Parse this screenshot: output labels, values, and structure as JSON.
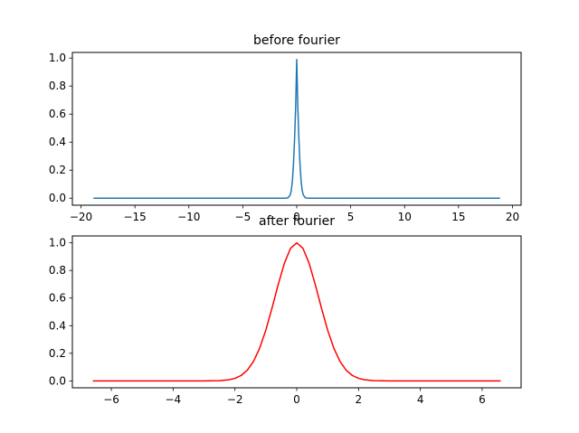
{
  "chart_data": [
    {
      "type": "line",
      "title": "before fourier",
      "xlabel": "",
      "ylabel": "",
      "xlim": [
        -20.8,
        20.8
      ],
      "ylim": [
        -0.05,
        1.04
      ],
      "xticks": [
        -20,
        -15,
        -10,
        -5,
        0,
        5,
        10,
        15,
        20
      ],
      "xtick_labels": [
        "−20",
        "−15",
        "−10",
        "−5",
        "0",
        "5",
        "10",
        "15",
        "20"
      ],
      "yticks": [
        0.0,
        0.2,
        0.4,
        0.6,
        0.8,
        1.0
      ],
      "ytick_labels": [
        "0.0",
        "0.2",
        "0.4",
        "0.6",
        "0.8",
        "1.0"
      ],
      "grid": false,
      "legend": "none",
      "series": [
        {
          "color": "#1f77b4",
          "x": [
            -18.85,
            -10,
            -5,
            -1.0,
            -0.8,
            -0.6,
            -0.5,
            -0.4,
            -0.3,
            -0.2,
            -0.1,
            0,
            0.1,
            0.2,
            0.3,
            0.4,
            0.5,
            0.6,
            0.8,
            1.0,
            5,
            10,
            18.85
          ],
          "y": [
            0,
            0,
            0,
            0.0003,
            0.0032,
            0.0236,
            0.0578,
            0.1262,
            0.2451,
            0.4232,
            0.6502,
            0.99,
            0.6502,
            0.4232,
            0.2451,
            0.1262,
            0.0578,
            0.0236,
            0.0032,
            0.0003,
            0,
            0,
            0
          ]
        }
      ]
    },
    {
      "type": "line",
      "title": "after fourier",
      "xlabel": "",
      "ylabel": "",
      "xlim": [
        -7.26,
        7.26
      ],
      "ylim": [
        -0.05,
        1.05
      ],
      "xticks": [
        -6,
        -4,
        -2,
        0,
        2,
        4,
        6
      ],
      "xtick_labels": [
        "−6",
        "−4",
        "−2",
        "0",
        "2",
        "4",
        "6"
      ],
      "yticks": [
        0.0,
        0.2,
        0.4,
        0.6,
        0.8,
        1.0
      ],
      "ytick_labels": [
        "0.0",
        "0.2",
        "0.4",
        "0.6",
        "0.8",
        "1.0"
      ],
      "grid": false,
      "legend": "none",
      "series": [
        {
          "color": "#ff0000",
          "x": [
            -6.6,
            -5,
            -4,
            -3,
            -2.5,
            -2.2,
            -2.0,
            -1.8,
            -1.6,
            -1.4,
            -1.2,
            -1.0,
            -0.8,
            -0.6,
            -0.4,
            -0.2,
            0,
            0.2,
            0.4,
            0.6,
            0.8,
            1.0,
            1.2,
            1.4,
            1.6,
            1.8,
            2.0,
            2.2,
            2.5,
            3,
            4,
            5,
            6.6
          ],
          "y": [
            0,
            0,
            0,
            0.0001,
            0.0019,
            0.0079,
            0.0183,
            0.0392,
            0.0773,
            0.1409,
            0.2369,
            0.3679,
            0.5273,
            0.6977,
            0.8521,
            0.9608,
            1.0,
            0.9608,
            0.8521,
            0.6977,
            0.5273,
            0.3679,
            0.2369,
            0.1409,
            0.0773,
            0.0392,
            0.0183,
            0.0079,
            0.0019,
            0.0001,
            0,
            0,
            0
          ]
        }
      ]
    }
  ]
}
